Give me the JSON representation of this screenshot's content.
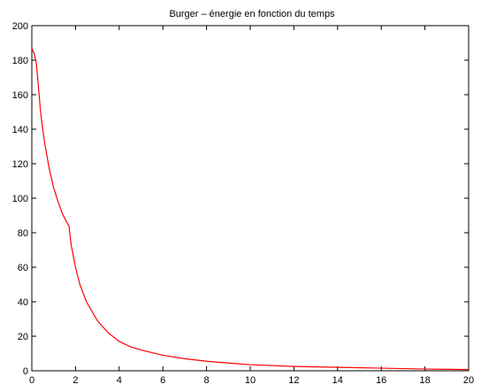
{
  "chart_data": {
    "type": "line",
    "title": "Burger – énergie en fonction du temps",
    "xlabel": "",
    "ylabel": "",
    "xlim": [
      0,
      20
    ],
    "ylim": [
      0,
      200
    ],
    "x_ticks": [
      0,
      2,
      4,
      6,
      8,
      10,
      12,
      14,
      16,
      18,
      20
    ],
    "y_ticks": [
      0,
      20,
      40,
      60,
      80,
      100,
      120,
      140,
      160,
      180,
      200
    ],
    "grid": false,
    "legend": "none",
    "series": [
      {
        "color": "#ff0000",
        "x": [
          0,
          0.1,
          0.2,
          0.3,
          0.4,
          0.5,
          0.6,
          0.8,
          1.0,
          1.2,
          1.4,
          1.6,
          1.7,
          1.8,
          2.0,
          2.2,
          2.5,
          3.0,
          3.5,
          4.0,
          4.5,
          5.0,
          6.0,
          7.0,
          8.0,
          9.0,
          10.0,
          12.0,
          14.0,
          16.0,
          18.0,
          20.0
        ],
        "y": [
          187,
          184,
          179,
          165,
          150,
          140,
          131,
          117,
          106,
          98,
          91,
          86,
          84,
          73,
          60,
          50,
          40,
          29,
          22,
          17,
          14,
          12,
          9,
          7,
          5.5,
          4.5,
          3.5,
          2.5,
          2,
          1.5,
          1,
          0.7
        ]
      }
    ]
  }
}
